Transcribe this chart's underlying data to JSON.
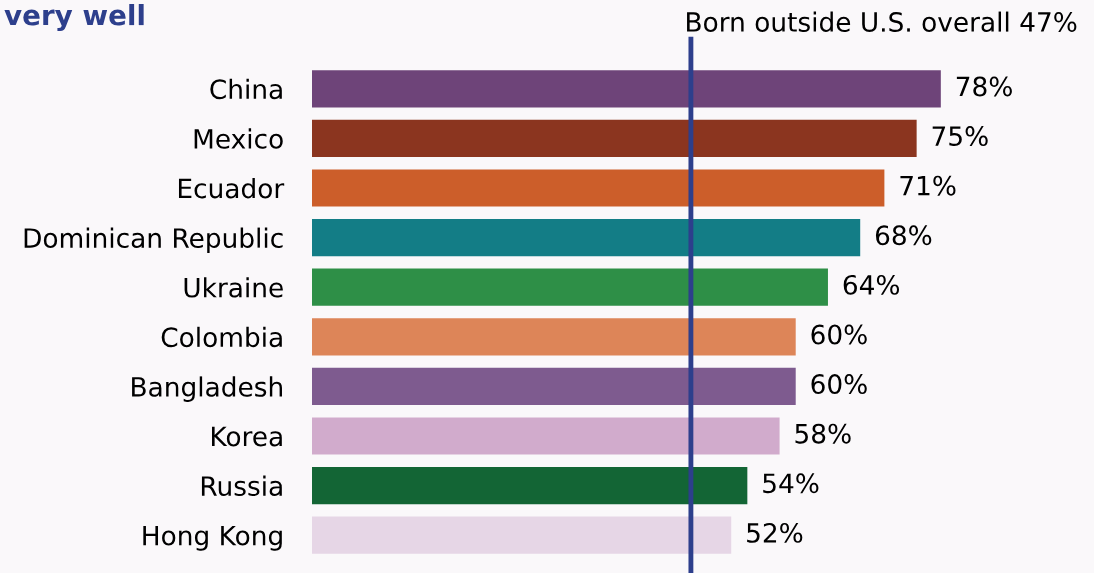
{
  "chart_data": {
    "type": "bar",
    "orientation": "horizontal",
    "title": "very well",
    "categories": [
      "China",
      "Mexico",
      "Ecuador",
      "Dominican Republic",
      "Ukraine",
      "Colombia",
      "Bangladesh",
      "Korea",
      "Russia",
      "Hong Kong"
    ],
    "values": [
      78,
      75,
      71,
      68,
      64,
      60,
      60,
      58,
      54,
      52
    ],
    "colors": [
      "#6e4479",
      "#8b351f",
      "#cc5e2a",
      "#137d86",
      "#2e8f47",
      "#dd8558",
      "#7e5b8f",
      "#d1abcc",
      "#136535",
      "#e6d6e6"
    ],
    "value_labels": [
      "78%",
      "75%",
      "71%",
      "68%",
      "64%",
      "60%",
      "60%",
      "58%",
      "54%",
      "52%"
    ],
    "xlim": [
      0,
      97
    ],
    "tick_labels": "y",
    "grid": false,
    "legend": false,
    "ref_lines": [
      {
        "axis": "x",
        "value": 47,
        "label": "Born outside U.S. overall 47%",
        "color": "#2d3f8c"
      }
    ]
  }
}
